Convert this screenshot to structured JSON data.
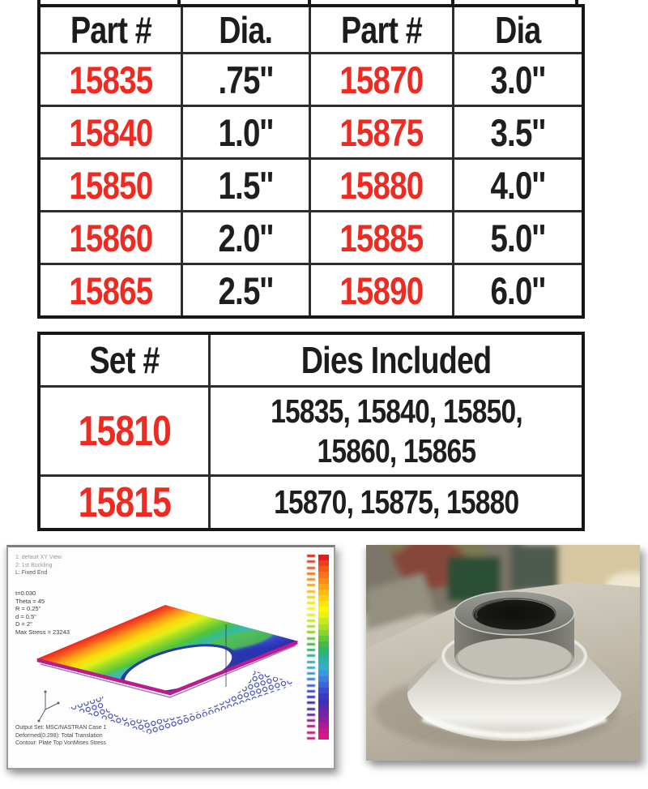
{
  "colors": {
    "accent_red": "#ee2b22",
    "table_border": "#161616",
    "inner_line": "#2d2d2d"
  },
  "parts_table": {
    "headers": [
      "Part #",
      "Dia.",
      "Part #",
      "Dia"
    ],
    "rows": [
      [
        "15835",
        ".75''",
        "15870",
        "3.0''"
      ],
      [
        "15840",
        "1.0''",
        "15875",
        "3.5''"
      ],
      [
        "15850",
        "1.5''",
        "15880",
        "4.0''"
      ],
      [
        "15860",
        "2.0''",
        "15885",
        "5.0''"
      ],
      [
        "15865",
        "2.5''",
        "15890",
        "6.0''"
      ]
    ]
  },
  "sets_table": {
    "headers": [
      "Set #",
      "Dies Included"
    ],
    "rows": [
      {
        "set": "15810",
        "dies": [
          "15835, 15840, 15850,",
          "15860, 15865"
        ]
      },
      {
        "set": "15815",
        "dies": [
          "15870, 15875, 15880"
        ]
      }
    ]
  },
  "fea_plot": {
    "header_lines": [
      "1: default XY View",
      "2: 1st Buckling",
      "L: Fixed End"
    ],
    "param_lines": [
      "t=0.030",
      "Theta = 45",
      "R = 0.25\"",
      "d = 0.5\"",
      "D = 2\"",
      "Max Stress = 23243"
    ],
    "footer_lines": [
      "Output Set: MSC/NASTRAN Case 1",
      "Deformed(0.298): Total Translation",
      "Contour: Plate Top VonMises Stress"
    ],
    "legend_colors": [
      "#e21d1c",
      "#ec3f1b",
      "#f25a19",
      "#f77317",
      "#fb8b15",
      "#fea313",
      "#ffba10",
      "#ffd00d",
      "#ffe40a",
      "#fef607",
      "#e6f310",
      "#c9ea1a",
      "#aadf24",
      "#88d42e",
      "#64c838",
      "#41bd45",
      "#2fb767",
      "#2ab48c",
      "#2eb2af",
      "#36abce",
      "#3c97dc",
      "#3f7ede",
      "#3e64da",
      "#3b4bd2",
      "#3939c6",
      "#3f2eb9",
      "#532bae",
      "#6e25a7",
      "#8e1fa0",
      "#ae1b97",
      "#c9188d",
      "#dd1684"
    ]
  }
}
